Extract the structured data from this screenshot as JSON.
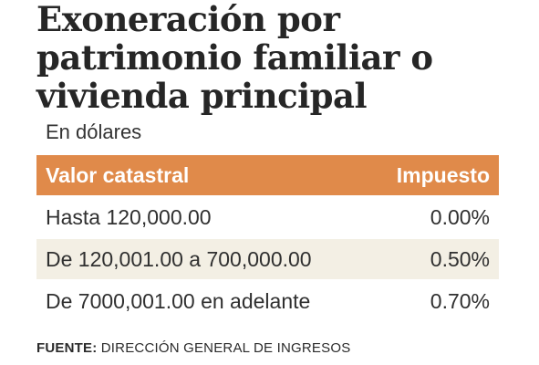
{
  "chart_data": {
    "type": "table",
    "title": "Exoneración por patrimonio familiar o vivienda principal",
    "subtitle": "En dólares",
    "columns": [
      "Valor catastral",
      "Impuesto"
    ],
    "rows": [
      [
        "Hasta 120,000.00",
        "0.00%"
      ],
      [
        "De 120,001.00 a 700,000.00",
        "0.50%"
      ],
      [
        "De 7000,001.00 en adelante",
        "0.70%"
      ]
    ],
    "header_color": "#e08a4a",
    "alt_row_color": "#f3efe4"
  },
  "source": {
    "label": "FUENTE:",
    "text": " DIRECCIÓN GENERAL DE INGRESOS"
  }
}
